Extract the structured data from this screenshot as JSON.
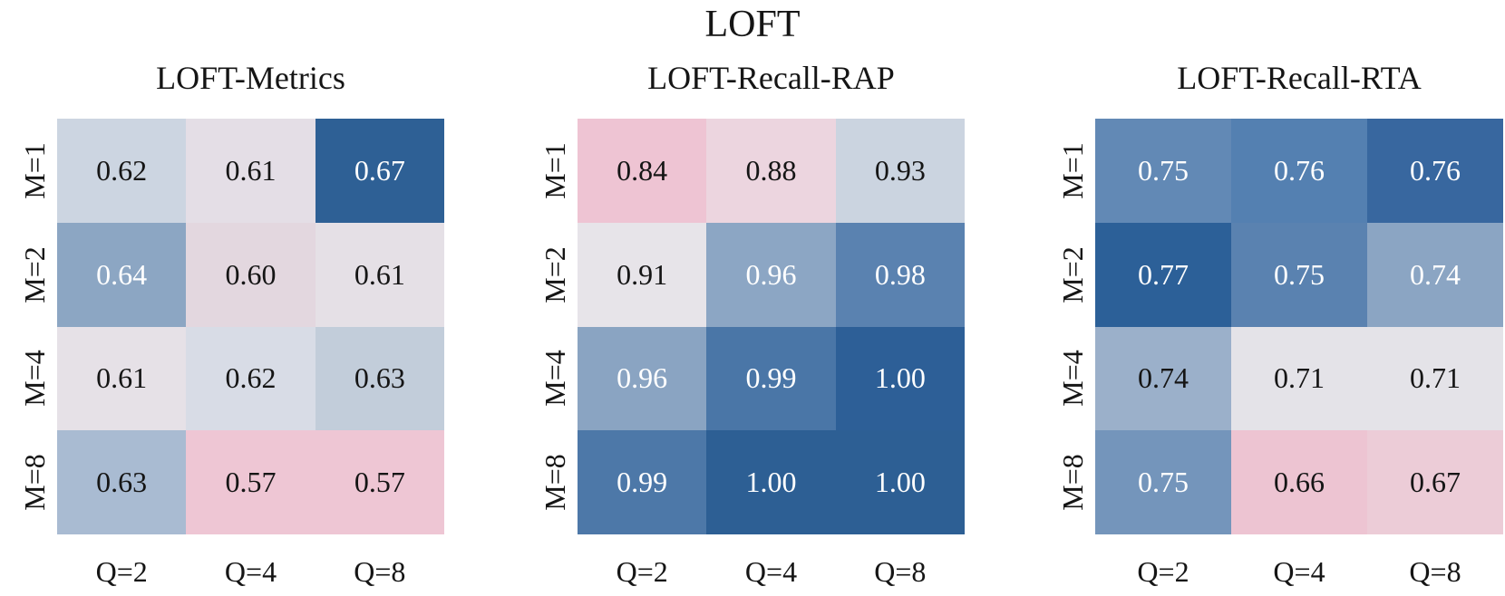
{
  "figure_title": "LOFT",
  "colors": {
    "background": "#ffffff",
    "dark_text": "#151515",
    "light_text": "#ffffff",
    "strong_blue": "#2d5f94",
    "strong_pink": "#eec6d4"
  },
  "chart_data": [
    {
      "type": "heatmap",
      "title": "LOFT-Metrics",
      "rows": [
        "M=1",
        "M=2",
        "M=4",
        "M=8"
      ],
      "cols": [
        "Q=2",
        "Q=4",
        "Q=8"
      ],
      "values": [
        [
          0.62,
          0.61,
          0.67
        ],
        [
          0.64,
          0.6,
          0.61
        ],
        [
          0.61,
          0.62,
          0.63
        ],
        [
          0.63,
          0.57,
          0.57
        ]
      ],
      "labels": [
        [
          "0.62",
          "0.61",
          "0.67"
        ],
        [
          "0.64",
          "0.60",
          "0.61"
        ],
        [
          "0.61",
          "0.62",
          "0.63"
        ],
        [
          "0.63",
          "0.57",
          "0.57"
        ]
      ],
      "cell_colors": [
        [
          "#ccd5e1",
          "#e4dee6",
          "#2e6095"
        ],
        [
          "#8ca6c3",
          "#e3d7df",
          "#e5e0e6"
        ],
        [
          "#e6e1e7",
          "#d8dce6",
          "#c2cdda"
        ],
        [
          "#a9bbd2",
          "#eec6d4",
          "#eec6d4"
        ]
      ],
      "value_colors": [
        [
          "#151515",
          "#151515",
          "#ffffff"
        ],
        [
          "#ffffff",
          "#151515",
          "#151515"
        ],
        [
          "#151515",
          "#151515",
          "#151515"
        ],
        [
          "#151515",
          "#151515",
          "#151515"
        ]
      ]
    },
    {
      "type": "heatmap",
      "title": "LOFT-Recall-RAP",
      "rows": [
        "M=1",
        "M=2",
        "M=4",
        "M=8"
      ],
      "cols": [
        "Q=2",
        "Q=4",
        "Q=8"
      ],
      "values": [
        [
          0.84,
          0.88,
          0.93
        ],
        [
          0.91,
          0.96,
          0.98
        ],
        [
          0.96,
          0.99,
          1.0
        ],
        [
          0.99,
          1.0,
          1.0
        ]
      ],
      "labels": [
        [
          "0.84",
          "0.88",
          "0.93"
        ],
        [
          "0.91",
          "0.96",
          "0.98"
        ],
        [
          "0.96",
          "0.99",
          "1.00"
        ],
        [
          "0.99",
          "1.00",
          "1.00"
        ]
      ],
      "cell_colors": [
        [
          "#eec4d3",
          "#ecd5df",
          "#cbd4e0"
        ],
        [
          "#e7e4e9",
          "#8ca6c4",
          "#5a82b0"
        ],
        [
          "#8aa4c2",
          "#4a76a7",
          "#2d5f97"
        ],
        [
          "#4d78a8",
          "#2d5f94",
          "#2d5f94"
        ]
      ],
      "value_colors": [
        [
          "#151515",
          "#151515",
          "#151515"
        ],
        [
          "#151515",
          "#ffffff",
          "#ffffff"
        ],
        [
          "#ffffff",
          "#ffffff",
          "#ffffff"
        ],
        [
          "#ffffff",
          "#ffffff",
          "#ffffff"
        ]
      ]
    },
    {
      "type": "heatmap",
      "title": "LOFT-Recall-RTA",
      "rows": [
        "M=1",
        "M=2",
        "M=4",
        "M=8"
      ],
      "cols": [
        "Q=2",
        "Q=4",
        "Q=8"
      ],
      "values": [
        [
          0.75,
          0.76,
          0.76
        ],
        [
          0.77,
          0.75,
          0.74
        ],
        [
          0.74,
          0.71,
          0.71
        ],
        [
          0.75,
          0.66,
          0.67
        ]
      ],
      "labels": [
        [
          "0.75",
          "0.76",
          "0.76"
        ],
        [
          "0.77",
          "0.75",
          "0.74"
        ],
        [
          "0.74",
          "0.71",
          "0.71"
        ],
        [
          "0.75",
          "0.66",
          "0.67"
        ]
      ],
      "cell_colors": [
        [
          "#6289b5",
          "#5480b1",
          "#38679f"
        ],
        [
          "#2c6098",
          "#5a82b0",
          "#8ba5c3"
        ],
        [
          "#9bb0ca",
          "#e4e3e8",
          "#e4e3e8"
        ],
        [
          "#7495bb",
          "#edc4d2",
          "#ecccd7"
        ]
      ],
      "value_colors": [
        [
          "#ffffff",
          "#ffffff",
          "#ffffff"
        ],
        [
          "#ffffff",
          "#ffffff",
          "#ffffff"
        ],
        [
          "#151515",
          "#151515",
          "#151515"
        ],
        [
          "#ffffff",
          "#151515",
          "#151515"
        ]
      ]
    }
  ]
}
